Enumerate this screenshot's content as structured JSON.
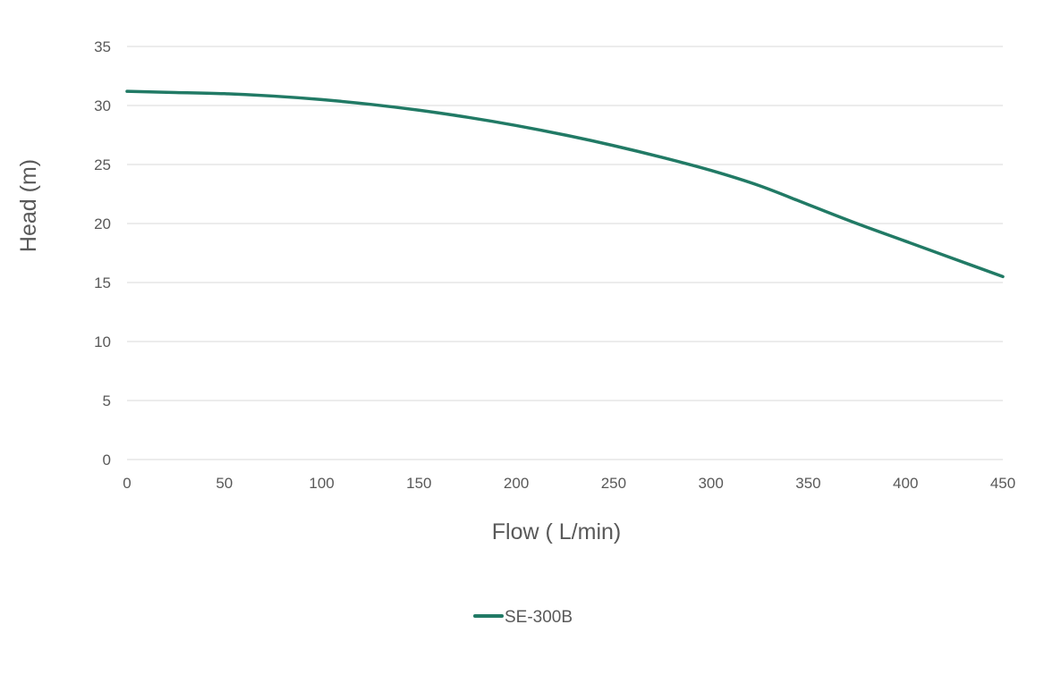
{
  "chart_data": {
    "type": "line",
    "title": "",
    "xlabel": "Flow ( L/min)",
    "ylabel": "Head (m)",
    "xlim": [
      0,
      450
    ],
    "ylim": [
      0,
      35
    ],
    "x_ticks": [
      "0",
      "50",
      "100",
      "150",
      "200",
      "250",
      "300",
      "350",
      "400",
      "450"
    ],
    "y_ticks": [
      "0",
      "5",
      "10",
      "15",
      "20",
      "25",
      "30",
      "35"
    ],
    "grid": "horizontal",
    "legend_position": "bottom",
    "series": [
      {
        "name": "SE-300B",
        "color": "#217a65",
        "x": [
          0,
          25,
          50,
          75,
          100,
          125,
          150,
          175,
          200,
          225,
          250,
          275,
          300,
          325,
          350,
          375,
          400,
          425,
          450
        ],
        "y": [
          31.2,
          31.1,
          31.0,
          30.8,
          30.5,
          30.1,
          29.6,
          29.0,
          28.3,
          27.5,
          26.6,
          25.6,
          24.5,
          23.2,
          21.6,
          20.0,
          18.5,
          17.0,
          15.5
        ]
      }
    ]
  }
}
